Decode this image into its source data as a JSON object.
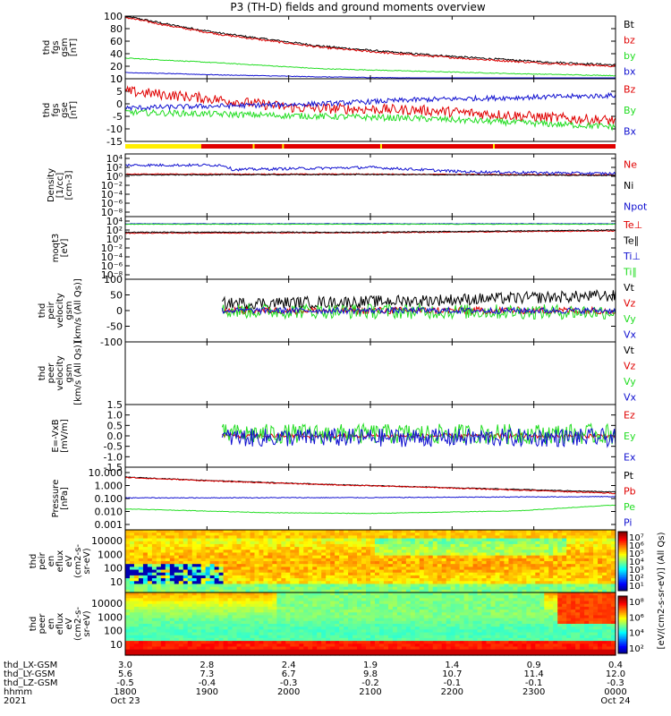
{
  "title": "P3 (TH-D) fields and ground moments overview",
  "colors": {
    "black": "#000000",
    "red": "#e00000",
    "green": "#22dd22",
    "blue": "#1010d0",
    "yellow": "#ffee00"
  },
  "chart_data": [
    {
      "id": "fgs_gsm",
      "type": "line",
      "ylabel": [
        "thd",
        "fgs",
        "gsm",
        "[nT]"
      ],
      "ylim": [
        0,
        100
      ],
      "yticks": [
        "0",
        "20",
        "40",
        "60",
        "80",
        "100"
      ],
      "series": [
        {
          "name": "Bt",
          "color": "black",
          "shape": [
            [
              0,
              100
            ],
            [
              0.1,
              85
            ],
            [
              0.2,
              72
            ],
            [
              0.3,
              62
            ],
            [
              0.4,
              52
            ],
            [
              0.55,
              42
            ],
            [
              0.7,
              34
            ],
            [
              0.85,
              27
            ],
            [
              1,
              22
            ]
          ],
          "noise": 1.5
        },
        {
          "name": "bz",
          "color": "red",
          "shape": [
            [
              0,
              98
            ],
            [
              0.1,
              83
            ],
            [
              0.2,
              70
            ],
            [
              0.3,
              60
            ],
            [
              0.4,
              50
            ],
            [
              0.55,
              40
            ],
            [
              0.7,
              32
            ],
            [
              0.85,
              25
            ],
            [
              1,
              20
            ]
          ],
          "noise": 1.5
        },
        {
          "name": "by",
          "color": "green",
          "shape": [
            [
              0,
              33
            ],
            [
              0.2,
              25
            ],
            [
              0.4,
              16
            ],
            [
              0.6,
              12
            ],
            [
              0.8,
              8
            ],
            [
              1,
              5
            ]
          ],
          "noise": 0.6
        },
        {
          "name": "bx",
          "color": "blue",
          "shape": [
            [
              0,
              10
            ],
            [
              0.2,
              6
            ],
            [
              0.4,
              3
            ],
            [
              0.6,
              1
            ],
            [
              0.8,
              -1
            ],
            [
              1,
              -3
            ]
          ],
          "noise": 0.5
        }
      ]
    },
    {
      "id": "fgs_gse",
      "type": "line",
      "ylabel": [
        "thd",
        "fgs",
        "gse",
        "[nT]"
      ],
      "ylim": [
        -18,
        12
      ],
      "yticks": [
        "-15",
        "-10",
        "-5",
        "0",
        "5",
        "10"
      ],
      "series": [
        {
          "name": "Bz",
          "color": "red",
          "shape": [
            [
              0,
              6
            ],
            [
              0.15,
              3
            ],
            [
              0.35,
              -2
            ],
            [
              0.6,
              -3
            ],
            [
              0.75,
              -5
            ],
            [
              0.9,
              -7
            ],
            [
              1,
              -8
            ]
          ],
          "noise": 2.5
        },
        {
          "name": "By",
          "color": "green",
          "shape": [
            [
              0,
              -4
            ],
            [
              0.2,
              -5
            ],
            [
              0.4,
              -6
            ],
            [
              0.6,
              -7
            ],
            [
              0.8,
              -9
            ],
            [
              1,
              -11
            ]
          ],
          "noise": 1.5
        },
        {
          "name": "Bx",
          "color": "blue",
          "shape": [
            [
              0,
              -2
            ],
            [
              0.2,
              -1
            ],
            [
              0.4,
              0
            ],
            [
              0.6,
              2
            ],
            [
              0.8,
              3
            ],
            [
              1,
              4
            ]
          ],
          "noise": 1.2
        }
      ]
    },
    {
      "id": "density",
      "type": "line",
      "scale": "log",
      "ylabel": [
        "Density",
        "[1/cc]",
        "[cm-3]"
      ],
      "ylim": [
        -8.5,
        4.5
      ],
      "yticks": [
        "10⁴",
        "10²",
        "10⁰",
        "10⁻²",
        "10⁻⁴",
        "10⁻⁶",
        "10⁻⁸"
      ],
      "series": [
        {
          "name": "Ne",
          "color": "red",
          "shape": [
            [
              0,
              0.5
            ],
            [
              0.5,
              0.5
            ],
            [
              1,
              0.3
            ]
          ],
          "noise": 0.1
        },
        {
          "name": "Ni",
          "color": "black",
          "shape": [
            [
              0,
              0.3
            ],
            [
              0.5,
              0.4
            ],
            [
              1,
              0.2
            ]
          ],
          "noise": 0.1
        },
        {
          "name": "Npot",
          "color": "blue",
          "shape": [
            [
              0,
              2.5
            ],
            [
              0.2,
              2.5
            ],
            [
              0.22,
              1.5
            ],
            [
              0.5,
              2.0
            ],
            [
              0.7,
              1.0
            ],
            [
              1,
              0.6
            ]
          ],
          "noise": 0.3
        }
      ]
    },
    {
      "id": "temperature",
      "type": "line",
      "scale": "log",
      "ylabel": [
        "moqt3",
        "[eV]"
      ],
      "ylim": [
        -8.5,
        4.5
      ],
      "yticks": [
        "10⁴",
        "10²",
        "10⁰",
        "10⁻²",
        "10⁻⁴",
        "10⁻⁶",
        "10⁻⁸"
      ],
      "series": [
        {
          "name": "Te⊥",
          "color": "red",
          "shape": [
            [
              0,
              1.3
            ],
            [
              0.5,
              1.4
            ],
            [
              1,
              1.8
            ]
          ],
          "noise": 0.1
        },
        {
          "name": "Te∥",
          "color": "black",
          "shape": [
            [
              0,
              1.5
            ],
            [
              0.5,
              1.5
            ],
            [
              1,
              2.0
            ]
          ],
          "noise": 0.1
        },
        {
          "name": "Ti⊥",
          "color": "blue",
          "shape": [
            [
              0,
              3.4
            ],
            [
              1,
              3.4
            ]
          ],
          "noise": 0.05
        },
        {
          "name": "Ti∥",
          "color": "green",
          "shape": [
            [
              0,
              3.3
            ],
            [
              1,
              3.3
            ]
          ],
          "noise": 0.05
        }
      ]
    },
    {
      "id": "peir_velocity",
      "type": "line",
      "ylabel": [
        "thd",
        "peir",
        "velocity",
        "gsm",
        "[km/s (All Qs)]"
      ],
      "ylim": [
        -105,
        105
      ],
      "yticks": [
        "-100",
        "-50",
        "0",
        "50",
        "100"
      ],
      "start": 0.196,
      "series": [
        {
          "name": "Vt",
          "color": "black",
          "shape": [
            [
              0,
              20
            ],
            [
              0.5,
              30
            ],
            [
              1,
              50
            ]
          ],
          "noise": 20
        },
        {
          "name": "Vz",
          "color": "red",
          "shape": [
            [
              0,
              0
            ],
            [
              1,
              0
            ]
          ],
          "noise": 12
        },
        {
          "name": "Vy",
          "color": "green",
          "shape": [
            [
              0,
              0
            ],
            [
              1,
              -5
            ]
          ],
          "noise": 25
        },
        {
          "name": "Vx",
          "color": "blue",
          "shape": [
            [
              0,
              0
            ],
            [
              1,
              0
            ]
          ],
          "noise": 10
        }
      ]
    },
    {
      "id": "peer_velocity",
      "type": "empty",
      "ylabel": [
        "thd",
        "peer",
        "velocity",
        "gsm",
        "[km/s (All Qs)]"
      ],
      "ylim": [
        0,
        1
      ],
      "yticks": [],
      "series": [
        {
          "name": "Vt",
          "color": "black"
        },
        {
          "name": "Vz",
          "color": "red"
        },
        {
          "name": "Vy",
          "color": "green"
        },
        {
          "name": "Vx",
          "color": "blue"
        }
      ]
    },
    {
      "id": "efield",
      "type": "line",
      "ylabel": [
        "E=-VxB",
        "[mV/m]"
      ],
      "ylim": [
        -1.7,
        1.7
      ],
      "yticks": [
        "-1.5",
        "-1.0",
        "-0.5",
        "0.0",
        "0.5",
        "1.0",
        "1.5"
      ],
      "start": 0.196,
      "series": [
        {
          "name": "Ez",
          "color": "red",
          "shape": [
            [
              0,
              0
            ],
            [
              1,
              0
            ]
          ],
          "noise": 0.12
        },
        {
          "name": "Ey",
          "color": "green",
          "shape": [
            [
              0,
              0.1
            ],
            [
              1,
              0.1
            ]
          ],
          "noise": 0.55
        },
        {
          "name": "Ex",
          "color": "blue",
          "shape": [
            [
              0,
              -0.1
            ],
            [
              1,
              -0.1
            ]
          ],
          "noise": 0.5
        }
      ]
    },
    {
      "id": "pressure",
      "type": "line",
      "scale": "log",
      "ylabel": [
        "Pressure",
        "[nPa]"
      ],
      "ylim": [
        -2.6,
        1.1
      ],
      "yticks": [
        "10.000",
        "1.000",
        "0.100",
        "0.010",
        "0.001"
      ],
      "series": [
        {
          "name": "Pt",
          "color": "black",
          "shape": [
            [
              0,
              0.65
            ],
            [
              0.2,
              0.35
            ],
            [
              0.4,
              0.1
            ],
            [
              0.6,
              -0.1
            ],
            [
              0.8,
              -0.3
            ],
            [
              1,
              -0.5
            ]
          ],
          "noise": 0.03
        },
        {
          "name": "Pb",
          "color": "red",
          "shape": [
            [
              0,
              0.62
            ],
            [
              0.2,
              0.32
            ],
            [
              0.4,
              0.08
            ],
            [
              0.6,
              -0.12
            ],
            [
              0.8,
              -0.35
            ],
            [
              1,
              -0.6
            ]
          ],
          "noise": 0.04
        },
        {
          "name": "Pe",
          "color": "green",
          "shape": [
            [
              0,
              -1.8
            ],
            [
              0.3,
              -2.1
            ],
            [
              0.5,
              -2.15
            ],
            [
              0.8,
              -1.95
            ],
            [
              1,
              -1.5
            ]
          ],
          "noise": 0.02
        },
        {
          "name": "Pi",
          "color": "blue",
          "shape": [
            [
              0,
              -0.95
            ],
            [
              0.5,
              -0.93
            ],
            [
              1,
              -0.85
            ]
          ],
          "noise": 0.03
        }
      ]
    },
    {
      "id": "peir_spec",
      "type": "heatmap",
      "ylabel": [
        "thd",
        "peir",
        "en",
        "eflux",
        "eV",
        "(cm2-s-",
        "sr-eV)"
      ],
      "yticks": [
        "10000",
        "1000",
        "100",
        "10"
      ],
      "colorbar_label": "[eV/(cm2-s-sr-eV)] (All Qs)",
      "colorbar_ticks": [
        "10⁷",
        "10⁶",
        "10⁵",
        "10⁴",
        "10³",
        "10²",
        "10¹"
      ]
    },
    {
      "id": "peer_spec",
      "type": "heatmap",
      "ylabel": [
        "thd",
        "peer",
        "en",
        "eflux",
        "eV",
        "(cm2-s-",
        "sr-eV)"
      ],
      "yticks": [
        "10000",
        "1000",
        "100",
        "10"
      ],
      "colorbar_label": "[eV/(cm2-s-sr-eV)] (All Qs)",
      "colorbar_ticks": [
        "10⁸",
        "10⁶",
        "10⁴",
        "10²"
      ]
    }
  ],
  "x_axis": {
    "rows": [
      {
        "label": "thd_LX-GSM",
        "values": [
          "3.0",
          "2.8",
          "2.4",
          "1.9",
          "1.4",
          "0.9",
          "0.4"
        ]
      },
      {
        "label": "thd_LY-GSM",
        "values": [
          "5.6",
          "7.3",
          "6.7",
          "9.8",
          "10.7",
          "11.4",
          "12.0"
        ]
      },
      {
        "label": "thd_LZ-GSM",
        "values": [
          "-0.5",
          "-0.4",
          "-0.3",
          "-0.2",
          "-0.1",
          "-0.1",
          "-0.3"
        ]
      },
      {
        "label": "hhmm",
        "values": [
          "1800",
          "1900",
          "2000",
          "2100",
          "2200",
          "2300",
          "0000"
        ]
      },
      {
        "label": "2021",
        "values": [
          "Oct 23",
          "",
          "",
          "",
          "",
          "",
          "Oct 24"
        ]
      }
    ]
  }
}
